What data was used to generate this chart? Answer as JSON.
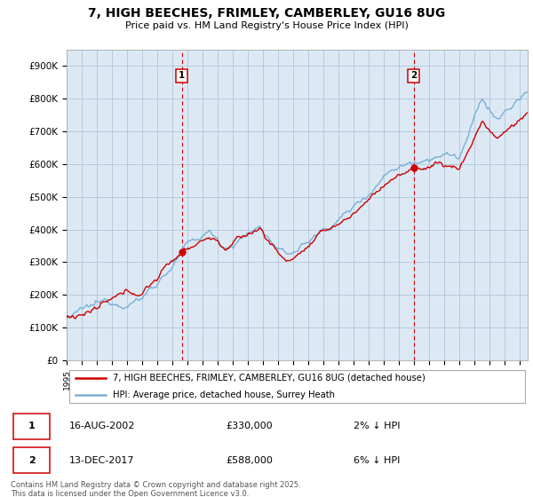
{
  "title_line1": "7, HIGH BEECHES, FRIMLEY, CAMBERLEY, GU16 8UG",
  "title_line2": "Price paid vs. HM Land Registry's House Price Index (HPI)",
  "ylim": [
    0,
    950000
  ],
  "yticks": [
    0,
    100000,
    200000,
    300000,
    400000,
    500000,
    600000,
    700000,
    800000,
    900000
  ],
  "ytick_labels": [
    "£0",
    "£100K",
    "£200K",
    "£300K",
    "£400K",
    "£500K",
    "£600K",
    "£700K",
    "£800K",
    "£900K"
  ],
  "sale1_date": 2002.62,
  "sale1_price": 330000,
  "sale1_label": "1",
  "sale2_date": 2017.95,
  "sale2_price": 588000,
  "sale2_label": "2",
  "legend_line1": "7, HIGH BEECHES, FRIMLEY, CAMBERLEY, GU16 8UG (detached house)",
  "legend_line2": "HPI: Average price, detached house, Surrey Heath",
  "table_row1": [
    "1",
    "16-AUG-2002",
    "£330,000",
    "2% ↓ HPI"
  ],
  "table_row2": [
    "2",
    "13-DEC-2017",
    "£588,000",
    "6% ↓ HPI"
  ],
  "footnote": "Contains HM Land Registry data © Crown copyright and database right 2025.\nThis data is licensed under the Open Government Licence v3.0.",
  "line_color_red": "#cc0000",
  "line_color_blue": "#7ab0d4",
  "chart_bg": "#dce9f5",
  "background_color": "#ffffff",
  "grid_color": "#b0c4d8",
  "start_year": 1995,
  "end_year": 2025,
  "xlim_start": 1995.0,
  "xlim_end": 2025.5
}
